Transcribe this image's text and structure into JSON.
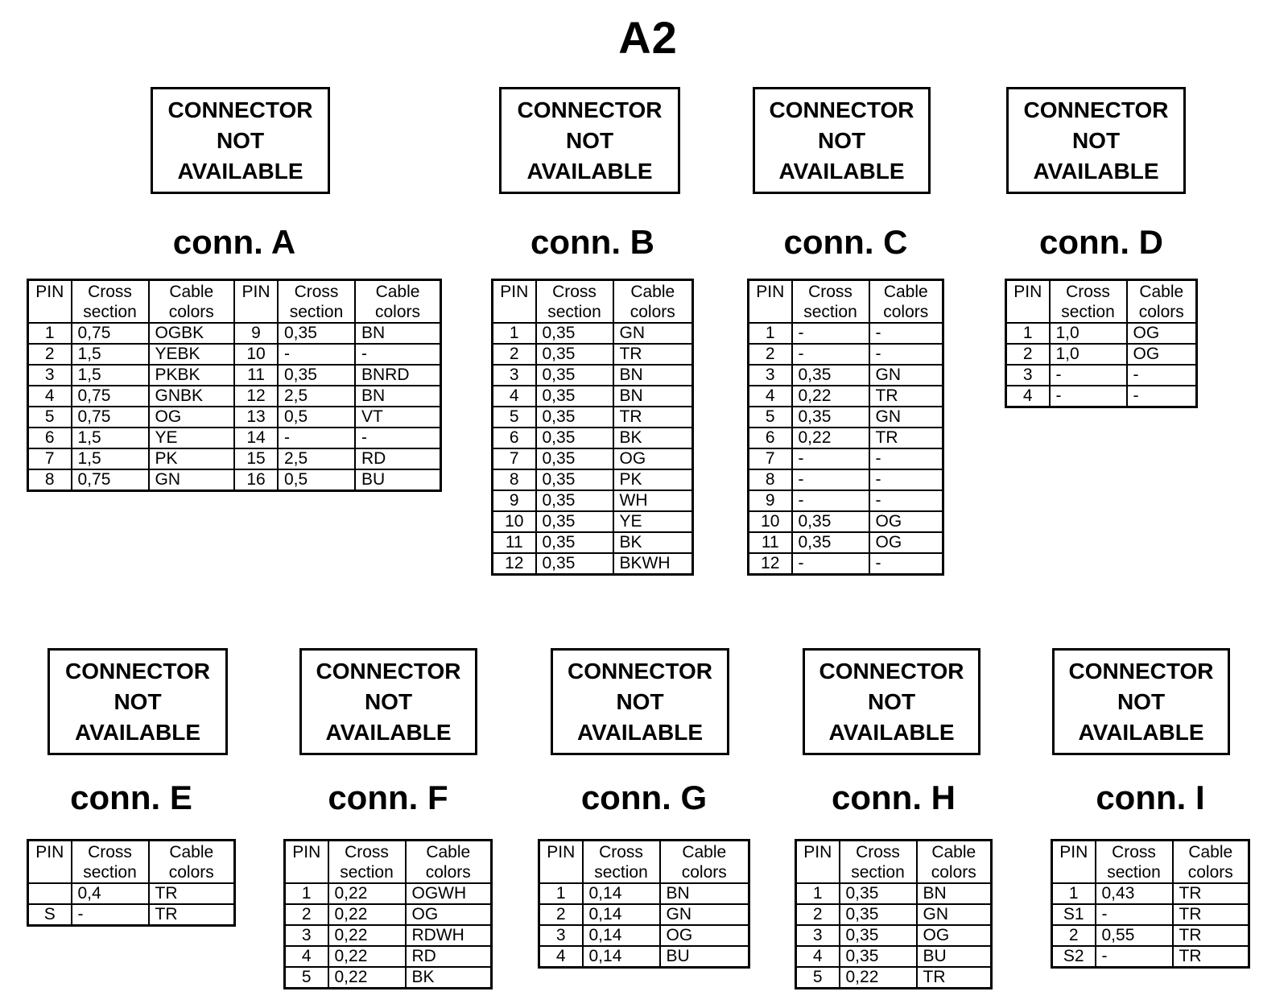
{
  "page_title": "A2",
  "na_box": {
    "lines": [
      "CONNECTOR",
      "NOT",
      "AVAILABLE"
    ]
  },
  "headers": {
    "pin": "PIN",
    "cross": "Cross\nsection",
    "colors": "Cable\ncolors"
  },
  "colors": {
    "ink": "#000000",
    "paper": "#ffffff"
  },
  "connectors": [
    {
      "id": "A",
      "title": "conn. A",
      "rows": [
        [
          "1",
          "0,75",
          "OGBK",
          "9",
          "0,35",
          "BN"
        ],
        [
          "2",
          "1,5",
          "YEBK",
          "10",
          "-",
          "-"
        ],
        [
          "3",
          "1,5",
          "PKBK",
          "11",
          "0,35",
          "BNRD"
        ],
        [
          "4",
          "0,75",
          "GNBK",
          "12",
          "2,5",
          "BN"
        ],
        [
          "5",
          "0,75",
          "OG",
          "13",
          "0,5",
          "VT"
        ],
        [
          "6",
          "1,5",
          "YE",
          "14",
          "-",
          "-"
        ],
        [
          "7",
          "1,5",
          "PK",
          "15",
          "2,5",
          "RD"
        ],
        [
          "8",
          "0,75",
          "GN",
          "16",
          "0,5",
          "BU"
        ]
      ]
    },
    {
      "id": "B",
      "title": "conn. B",
      "rows": [
        [
          "1",
          "0,35",
          "GN"
        ],
        [
          "2",
          "0,35",
          "TR"
        ],
        [
          "3",
          "0,35",
          "BN"
        ],
        [
          "4",
          "0,35",
          "BN"
        ],
        [
          "5",
          "0,35",
          "TR"
        ],
        [
          "6",
          "0,35",
          "BK"
        ],
        [
          "7",
          "0,35",
          "OG"
        ],
        [
          "8",
          "0,35",
          "PK"
        ],
        [
          "9",
          "0,35",
          "WH"
        ],
        [
          "10",
          "0,35",
          "YE"
        ],
        [
          "11",
          "0,35",
          "BK"
        ],
        [
          "12",
          "0,35",
          "BKWH"
        ]
      ]
    },
    {
      "id": "C",
      "title": "conn. C",
      "rows": [
        [
          "1",
          "-",
          "-"
        ],
        [
          "2",
          "-",
          "-"
        ],
        [
          "3",
          "0,35",
          "GN"
        ],
        [
          "4",
          "0,22",
          "TR"
        ],
        [
          "5",
          "0,35",
          "GN"
        ],
        [
          "6",
          "0,22",
          "TR"
        ],
        [
          "7",
          "-",
          "-"
        ],
        [
          "8",
          "-",
          "-"
        ],
        [
          "9",
          "-",
          "-"
        ],
        [
          "10",
          "0,35",
          "OG"
        ],
        [
          "11",
          "0,35",
          "OG"
        ],
        [
          "12",
          "-",
          "-"
        ]
      ]
    },
    {
      "id": "D",
      "title": "conn. D",
      "rows": [
        [
          "1",
          "1,0",
          "OG"
        ],
        [
          "2",
          "1,0",
          "OG"
        ],
        [
          "3",
          "-",
          "-"
        ],
        [
          "4",
          "-",
          "-"
        ]
      ]
    },
    {
      "id": "E",
      "title": "conn. E",
      "rows": [
        [
          "",
          "0,4",
          "TR"
        ],
        [
          "S",
          "-",
          "TR"
        ]
      ]
    },
    {
      "id": "F",
      "title": "conn. F",
      "rows": [
        [
          "1",
          "0,22",
          "OGWH"
        ],
        [
          "2",
          "0,22",
          "OG"
        ],
        [
          "3",
          "0,22",
          "RDWH"
        ],
        [
          "4",
          "0,22",
          "RD"
        ],
        [
          "5",
          "0,22",
          "BK"
        ]
      ]
    },
    {
      "id": "G",
      "title": "conn. G",
      "rows": [
        [
          "1",
          "0,14",
          "BN"
        ],
        [
          "2",
          "0,14",
          "GN"
        ],
        [
          "3",
          "0,14",
          "OG"
        ],
        [
          "4",
          "0,14",
          "BU"
        ]
      ]
    },
    {
      "id": "H",
      "title": "conn. H",
      "rows": [
        [
          "1",
          "0,35",
          "BN"
        ],
        [
          "2",
          "0,35",
          "GN"
        ],
        [
          "3",
          "0,35",
          "OG"
        ],
        [
          "4",
          "0,35",
          "BU"
        ],
        [
          "5",
          "0,22",
          "TR"
        ]
      ]
    },
    {
      "id": "I",
      "title": "conn. I",
      "rows": [
        [
          "1",
          "0,43",
          "TR"
        ],
        [
          "S1",
          "-",
          "TR"
        ],
        [
          "2",
          "0,55",
          "TR"
        ],
        [
          "S2",
          "-",
          "TR"
        ]
      ]
    }
  ]
}
